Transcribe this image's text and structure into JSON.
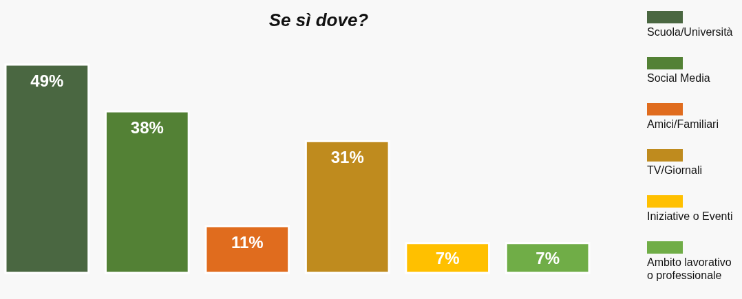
{
  "chart_data": {
    "type": "bar",
    "title": "Se sì dove?",
    "categories": [
      null,
      null,
      null,
      null,
      null,
      null
    ],
    "series": [
      {
        "name": "Scuola/Università",
        "color": "#4a6741",
        "values": [
          49,
          null,
          null,
          null,
          null,
          null
        ],
        "value_labels": [
          "49%",
          null,
          null,
          null,
          null,
          null
        ]
      },
      {
        "name": "Social Media",
        "color": "#538135",
        "values": [
          null,
          38,
          null,
          null,
          null,
          null
        ],
        "value_labels": [
          null,
          "38%",
          null,
          null,
          null,
          null
        ]
      },
      {
        "name": "Amici/Familiari",
        "color": "#e06c1e",
        "values": [
          null,
          null,
          11,
          null,
          null,
          null
        ],
        "value_labels": [
          null,
          null,
          "11%",
          null,
          null,
          null
        ]
      },
      {
        "name": "TV/Giornali",
        "color": "#bf8b1e",
        "values": [
          null,
          null,
          null,
          31,
          null,
          null
        ],
        "value_labels": [
          null,
          null,
          null,
          "31%",
          null,
          null
        ]
      },
      {
        "name": "Iniziative o Eventi",
        "color": "#ffc000",
        "values": [
          null,
          null,
          null,
          null,
          7,
          null
        ],
        "value_labels": [
          null,
          null,
          null,
          null,
          "7%",
          null
        ]
      },
      {
        "name": "Ambito lavorativo o professionale",
        "color": "#70ad47",
        "values": [
          null,
          null,
          null,
          null,
          null,
          7
        ],
        "value_labels": [
          null,
          null,
          null,
          null,
          null,
          "7%"
        ]
      }
    ],
    "stacked": true,
    "legend": "right"
  }
}
